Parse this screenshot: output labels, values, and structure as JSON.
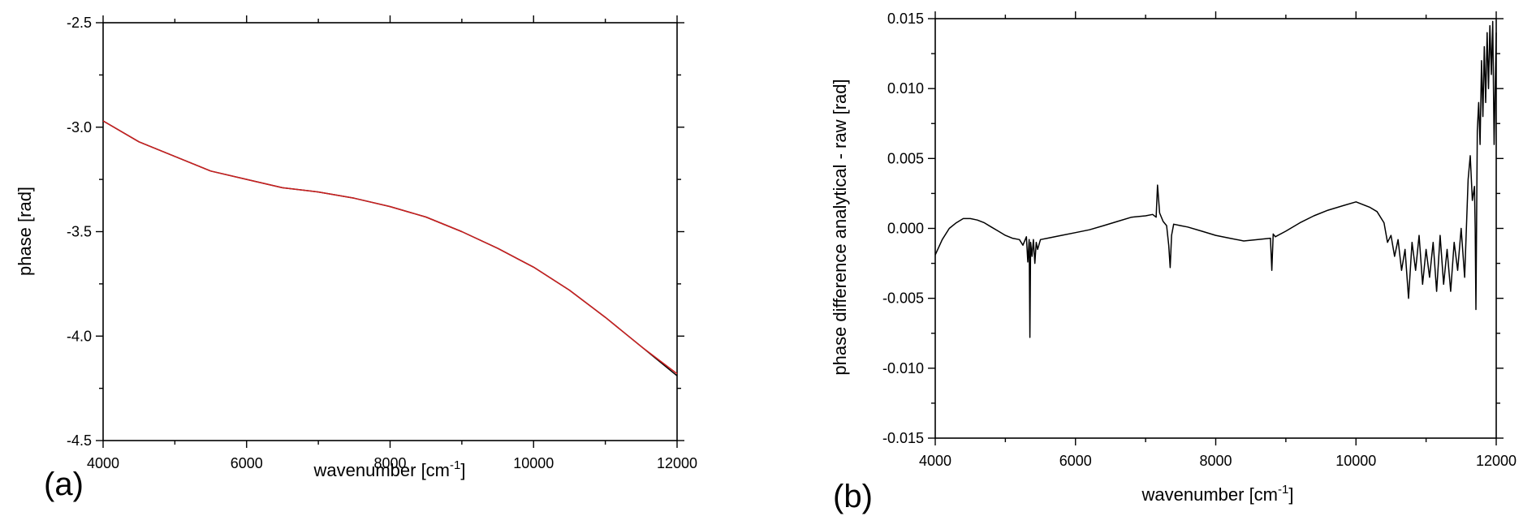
{
  "chart_data": [
    {
      "type": "line",
      "panel_label": "(a)",
      "xlabel": "wavenumber [cm",
      "xlabel_sup": "-1",
      "xlabel_end": "]",
      "ylabel": "phase [rad]",
      "xlim": [
        4000,
        12000
      ],
      "ylim": [
        -4.5,
        -2.5
      ],
      "x_ticks": [
        "4000",
        "6000",
        "8000",
        "10000",
        "12000"
      ],
      "y_ticks": [
        "-2.5",
        "-3.0",
        "-3.5",
        "-4.0",
        "-4.5"
      ],
      "grid": false,
      "series": [
        {
          "color": "#000000",
          "x": [
            4000,
            4500,
            5000,
            5500,
            6000,
            6500,
            7000,
            7500,
            8000,
            8500,
            9000,
            9500,
            10000,
            10500,
            11000,
            11500,
            12000
          ],
          "y": [
            -2.97,
            -3.07,
            -3.14,
            -3.21,
            -3.25,
            -3.29,
            -3.31,
            -3.34,
            -3.38,
            -3.43,
            -3.5,
            -3.58,
            -3.67,
            -3.78,
            -3.91,
            -4.05,
            -4.19
          ]
        },
        {
          "color": "#cc1f1f",
          "x": [
            4000,
            4500,
            5000,
            5500,
            6000,
            6500,
            7000,
            7500,
            8000,
            8500,
            9000,
            9500,
            10000,
            10500,
            11000,
            11500,
            12000
          ],
          "y": [
            -2.97,
            -3.07,
            -3.14,
            -3.21,
            -3.25,
            -3.29,
            -3.31,
            -3.34,
            -3.38,
            -3.43,
            -3.5,
            -3.58,
            -3.67,
            -3.78,
            -3.91,
            -4.05,
            -4.18
          ]
        }
      ]
    },
    {
      "type": "line",
      "panel_label": "(b)",
      "xlabel": "wavenumber [cm",
      "xlabel_sup": "-1",
      "xlabel_end": "]",
      "ylabel": "phase difference analytical - raw [rad]",
      "xlim": [
        4000,
        12000
      ],
      "ylim": [
        -0.015,
        0.015
      ],
      "x_ticks": [
        "4000",
        "6000",
        "8000",
        "10000",
        "12000"
      ],
      "y_ticks": [
        "0.015",
        "0.010",
        "0.005",
        "0.000",
        "-0.005",
        "-0.010",
        "-0.015"
      ],
      "grid": false,
      "series": [
        {
          "color": "#000000",
          "x": [
            4000,
            4100,
            4200,
            4300,
            4400,
            4500,
            4600,
            4700,
            4800,
            4900,
            5000,
            5100,
            5200,
            5250,
            5300,
            5320,
            5340,
            5350,
            5360,
            5380,
            5400,
            5420,
            5440,
            5460,
            5500,
            5600,
            5800,
            6000,
            6200,
            6400,
            6600,
            6800,
            7000,
            7100,
            7150,
            7170,
            7200,
            7250,
            7300,
            7330,
            7350,
            7370,
            7400,
            7500,
            7600,
            7800,
            8000,
            8200,
            8400,
            8600,
            8780,
            8800,
            8820,
            8850,
            9000,
            9200,
            9400,
            9600,
            9800,
            10000,
            10200,
            10300,
            10400,
            10450,
            10500,
            10550,
            10600,
            10650,
            10700,
            10750,
            10800,
            10850,
            10900,
            10950,
            11000,
            11050,
            11100,
            11150,
            11200,
            11250,
            11300,
            11350,
            11400,
            11450,
            11500,
            11550,
            11600,
            11630,
            11660,
            11690,
            11700,
            11710,
            11730,
            11750,
            11770,
            11790,
            11810,
            11830,
            11850,
            11870,
            11890,
            11910,
            11930,
            11950,
            11970,
            12000
          ],
          "y": [
            -0.0019,
            -0.0008,
            0.0,
            0.0004,
            0.0007,
            0.0007,
            0.0006,
            0.0004,
            0.0001,
            -0.0002,
            -0.0005,
            -0.0007,
            -0.0008,
            -0.0012,
            -0.0006,
            -0.0024,
            -0.0008,
            -0.0078,
            -0.001,
            -0.002,
            -0.0008,
            -0.0025,
            -0.001,
            -0.0015,
            -0.0008,
            -0.0007,
            -0.0005,
            -0.0003,
            -0.0001,
            0.0002,
            0.0005,
            0.0008,
            0.0009,
            0.001,
            0.0008,
            0.0031,
            0.0011,
            0.0005,
            0.0002,
            -0.0012,
            -0.0028,
            -0.0005,
            0.0003,
            0.0002,
            0.0001,
            -0.0002,
            -0.0005,
            -0.0007,
            -0.0009,
            -0.0008,
            -0.0007,
            -0.003,
            -0.0004,
            -0.0006,
            -0.0002,
            0.0004,
            0.0009,
            0.0013,
            0.0016,
            0.0019,
            0.0015,
            0.0012,
            0.0004,
            -0.001,
            -0.0005,
            -0.002,
            -0.0008,
            -0.003,
            -0.0015,
            -0.005,
            -0.001,
            -0.003,
            -0.0005,
            -0.004,
            -0.0015,
            -0.0035,
            -0.001,
            -0.0045,
            -0.0005,
            -0.004,
            -0.0015,
            -0.0045,
            -0.001,
            -0.003,
            0.0,
            -0.0035,
            0.0035,
            0.0052,
            0.002,
            0.003,
            0.0,
            -0.0058,
            0.007,
            0.009,
            0.006,
            0.012,
            0.008,
            0.013,
            0.009,
            0.014,
            0.01,
            0.0145,
            0.011,
            0.0148,
            0.006,
            0.014
          ]
        }
      ]
    }
  ]
}
